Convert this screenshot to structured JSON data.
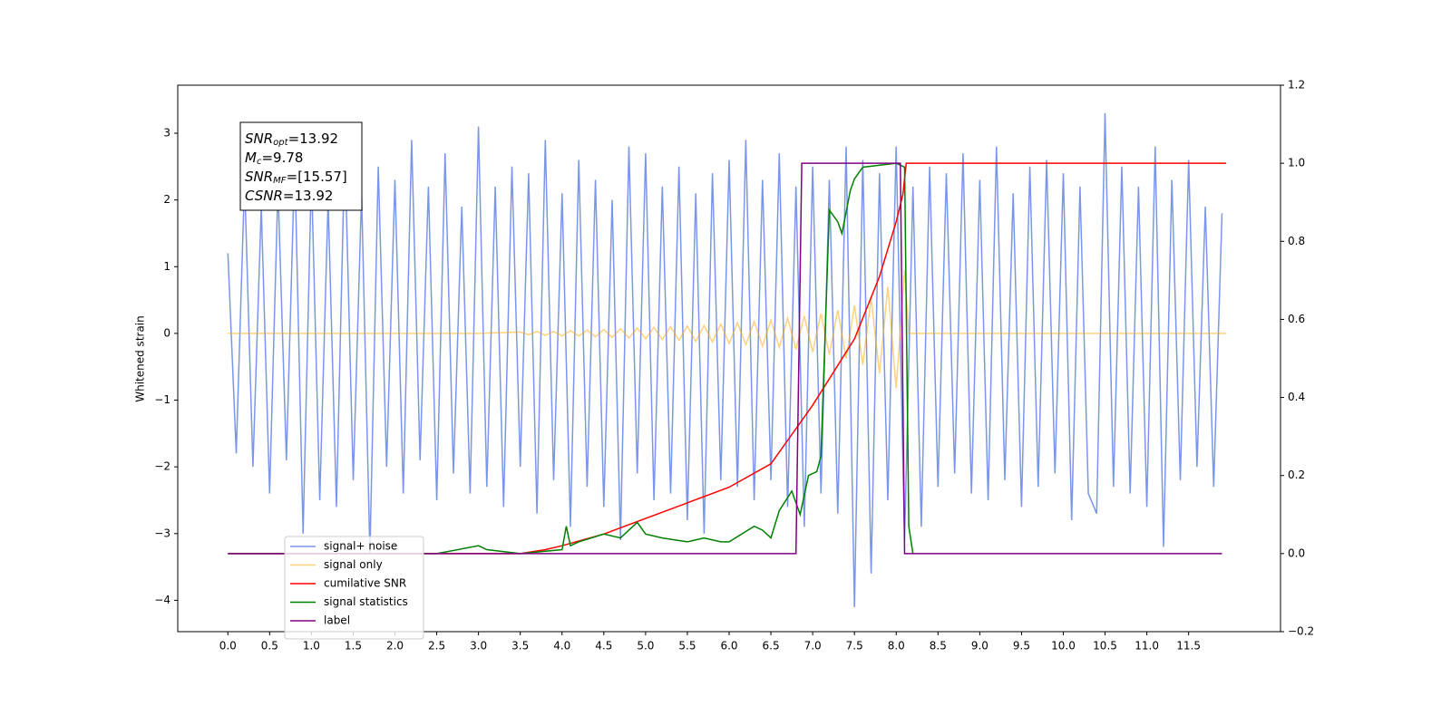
{
  "chart_data": {
    "type": "line",
    "ylabel": "Whitened strain",
    "xlim": [
      -0.6,
      12.6
    ],
    "ylim": [
      -4.47,
      3.72
    ],
    "y2lim": [
      -0.2,
      1.2
    ],
    "xticks": [
      {
        "value": 0,
        "label": "0.0"
      },
      0.5,
      {
        "value": 1,
        "label": "1.0"
      },
      1.5,
      {
        "value": 2,
        "label": "2.0"
      },
      2.5,
      {
        "value": 3,
        "label": "3.0"
      },
      3.5,
      {
        "value": 4,
        "label": "4.0"
      },
      4.5,
      {
        "value": 5,
        "label": "5.0"
      },
      5.5,
      {
        "value": 6,
        "label": "6.0"
      },
      6.5,
      {
        "value": 7,
        "label": "7.0"
      },
      7.5,
      {
        "value": 8,
        "label": "8.0"
      },
      8.5,
      {
        "value": 9,
        "label": "9.0"
      },
      9.5,
      {
        "value": 10,
        "label": "10.0"
      },
      10.5,
      {
        "value": 11,
        "label": "11.0"
      },
      11.5
    ],
    "yticks": [
      {
        "value": -4,
        "label": "−4"
      },
      {
        "value": -3,
        "label": "−3"
      },
      {
        "value": -2,
        "label": "−2"
      },
      {
        "value": -1,
        "label": "−1"
      },
      0,
      1,
      2,
      3
    ],
    "y2ticks": [
      {
        "value": -0.2,
        "label": "−0.2"
      },
      {
        "value": 0,
        "label": "0.0"
      },
      0.2,
      0.4,
      0.6,
      0.8,
      {
        "value": 1,
        "label": "1.0"
      },
      1.2
    ],
    "legend": "lower left",
    "annotation": [
      {
        "base": "SNR",
        "sub": "opt",
        "text": "=13.92"
      },
      {
        "base": "M",
        "sub": "c",
        "text": "=9.78"
      },
      {
        "base": "SNR",
        "sub": "MF",
        "text": "=[15.57]"
      },
      {
        "base": "CSNR",
        "text": "=13.92"
      }
    ],
    "series": [
      {
        "name": "signal+ noise",
        "color": "#4169e1",
        "alpha": 0.7,
        "x": [
          0.0,
          0.1,
          0.2,
          0.3,
          0.4,
          0.5,
          0.6,
          0.7,
          0.8,
          0.9,
          1.0,
          1.1,
          1.2,
          1.3,
          1.4,
          1.5,
          1.6,
          1.7,
          1.8,
          1.9,
          2.0,
          2.1,
          2.2,
          2.3,
          2.4,
          2.5,
          2.6,
          2.7,
          2.8,
          2.9,
          3.0,
          3.1,
          3.2,
          3.3,
          3.4,
          3.5,
          3.6,
          3.7,
          3.8,
          3.9,
          4.0,
          4.1,
          4.2,
          4.3,
          4.4,
          4.5,
          4.6,
          4.7,
          4.8,
          4.9,
          5.0,
          5.1,
          5.2,
          5.3,
          5.4,
          5.5,
          5.6,
          5.7,
          5.8,
          5.9,
          6.0,
          6.1,
          6.2,
          6.3,
          6.4,
          6.5,
          6.6,
          6.7,
          6.8,
          6.9,
          7.0,
          7.1,
          7.2,
          7.3,
          7.4,
          7.5,
          7.6,
          7.7,
          7.8,
          7.9,
          8.0,
          8.1,
          8.2,
          8.3,
          8.4,
          8.5,
          8.6,
          8.7,
          8.8,
          8.9,
          9.0,
          9.1,
          9.2,
          9.3,
          9.4,
          9.5,
          9.6,
          9.7,
          9.8,
          9.9,
          10.0,
          10.1,
          10.2,
          10.3,
          10.4,
          10.5,
          10.6,
          10.7,
          10.8,
          10.9,
          11.0,
          11.1,
          11.2,
          11.3,
          11.4,
          11.5,
          11.6,
          11.7,
          11.8,
          11.9
        ],
        "values": [
          1.2,
          -1.8,
          2.3,
          -2.0,
          1.9,
          -2.4,
          2.2,
          -1.9,
          2.6,
          -3.0,
          2.4,
          -2.5,
          2.0,
          -2.6,
          2.8,
          -2.2,
          2.1,
          -3.3,
          2.5,
          -2.0,
          2.3,
          -2.4,
          2.9,
          -1.9,
          2.2,
          -2.5,
          2.7,
          -2.1,
          1.9,
          -2.4,
          3.1,
          -2.3,
          2.2,
          -2.6,
          2.5,
          -2.0,
          2.4,
          -2.7,
          2.9,
          -2.2,
          2.1,
          -2.9,
          2.6,
          -2.3,
          2.3,
          -2.6,
          2.0,
          -3.1,
          2.8,
          -2.1,
          2.7,
          -2.5,
          2.2,
          -2.4,
          2.5,
          -2.8,
          2.1,
          -3.0,
          2.4,
          -2.2,
          2.6,
          -2.3,
          2.9,
          -2.5,
          2.3,
          -2.2,
          2.7,
          -2.6,
          2.2,
          -2.9,
          2.5,
          -2.4,
          2.3,
          -2.7,
          2.8,
          -4.1,
          2.6,
          -3.6,
          2.4,
          -2.5,
          2.8,
          -3.1,
          2.2,
          -2.9,
          2.5,
          -2.3,
          2.4,
          -2.1,
          2.7,
          -2.4,
          2.3,
          -2.5,
          2.8,
          -2.2,
          2.1,
          -2.6,
          2.5,
          -2.3,
          2.6,
          -2.1,
          2.4,
          -2.8,
          2.2,
          -2.4,
          -2.7,
          3.3,
          -2.3,
          2.5,
          -2.4,
          2.2,
          -2.6,
          2.8,
          -3.2,
          2.3,
          -2.2,
          2.6,
          -2.0,
          1.9,
          -2.3,
          1.8
        ]
      },
      {
        "name": "signal only",
        "color": "#ffa500",
        "alpha": 0.5,
        "x": [
          0.0,
          3.0,
          3.5,
          3.6,
          3.7,
          3.8,
          3.9,
          4.0,
          4.1,
          4.2,
          4.3,
          4.4,
          4.5,
          4.6,
          4.7,
          4.8,
          4.9,
          5.0,
          5.1,
          5.2,
          5.3,
          5.4,
          5.5,
          5.6,
          5.7,
          5.8,
          5.9,
          6.0,
          6.1,
          6.2,
          6.3,
          6.4,
          6.5,
          6.6,
          6.7,
          6.8,
          6.9,
          7.0,
          7.1,
          7.2,
          7.3,
          7.4,
          7.5,
          7.6,
          7.7,
          7.8,
          7.9,
          8.0,
          8.1,
          8.15,
          11.95
        ],
        "values": [
          0,
          0,
          0.02,
          -0.02,
          0.03,
          -0.03,
          0.03,
          -0.04,
          0.04,
          -0.04,
          0.05,
          -0.05,
          0.06,
          -0.06,
          0.07,
          -0.07,
          0.08,
          -0.08,
          0.09,
          -0.09,
          0.1,
          -0.1,
          0.11,
          -0.12,
          0.12,
          -0.13,
          0.14,
          -0.15,
          0.16,
          -0.17,
          0.18,
          -0.19,
          0.2,
          -0.21,
          0.23,
          -0.24,
          0.26,
          -0.28,
          0.3,
          -0.32,
          0.35,
          -0.38,
          0.42,
          -0.47,
          0.53,
          -0.6,
          0.7,
          -0.82,
          0.95,
          0,
          0
        ]
      },
      {
        "name": "cumilative SNR",
        "color": "#ff0000",
        "axis": "y2",
        "x": [
          0,
          3.5,
          3.8,
          4.0,
          4.5,
          5.0,
          5.5,
          6.0,
          6.5,
          7.0,
          7.5,
          7.8,
          8.0,
          8.08,
          8.12,
          11.95
        ],
        "values": [
          0,
          0,
          0.01,
          0.02,
          0.05,
          0.09,
          0.13,
          0.17,
          0.23,
          0.38,
          0.55,
          0.71,
          0.85,
          0.92,
          1.0,
          1.0
        ]
      },
      {
        "name": "signal statistics",
        "color": "#008000",
        "axis": "y2",
        "x": [
          0,
          1.5,
          2.5,
          3.0,
          3.1,
          3.5,
          4.0,
          4.05,
          4.1,
          4.2,
          4.5,
          4.7,
          4.9,
          5.0,
          5.2,
          5.5,
          5.7,
          5.9,
          6.0,
          6.3,
          6.4,
          6.5,
          6.6,
          6.75,
          6.85,
          6.95,
          7.05,
          7.1,
          7.2,
          7.3,
          7.35,
          7.45,
          7.5,
          7.6,
          8.0,
          8.1,
          8.15,
          8.2
        ],
        "values": [
          0,
          0,
          0,
          0.02,
          0.01,
          0,
          0.01,
          0.07,
          0.02,
          0.03,
          0.05,
          0.04,
          0.08,
          0.05,
          0.04,
          0.03,
          0.04,
          0.03,
          0.03,
          0.07,
          0.06,
          0.04,
          0.11,
          0.16,
          0.1,
          0.2,
          0.21,
          0.25,
          0.88,
          0.85,
          0.82,
          0.93,
          0.96,
          0.99,
          1.0,
          0.99,
          0.07,
          0
        ]
      },
      {
        "name": "label",
        "color": "#800080",
        "axis": "y2",
        "x": [
          0,
          6.8,
          6.87,
          8.05,
          8.1,
          11.9
        ],
        "values": [
          0,
          0,
          1,
          1,
          0,
          0
        ]
      }
    ]
  }
}
